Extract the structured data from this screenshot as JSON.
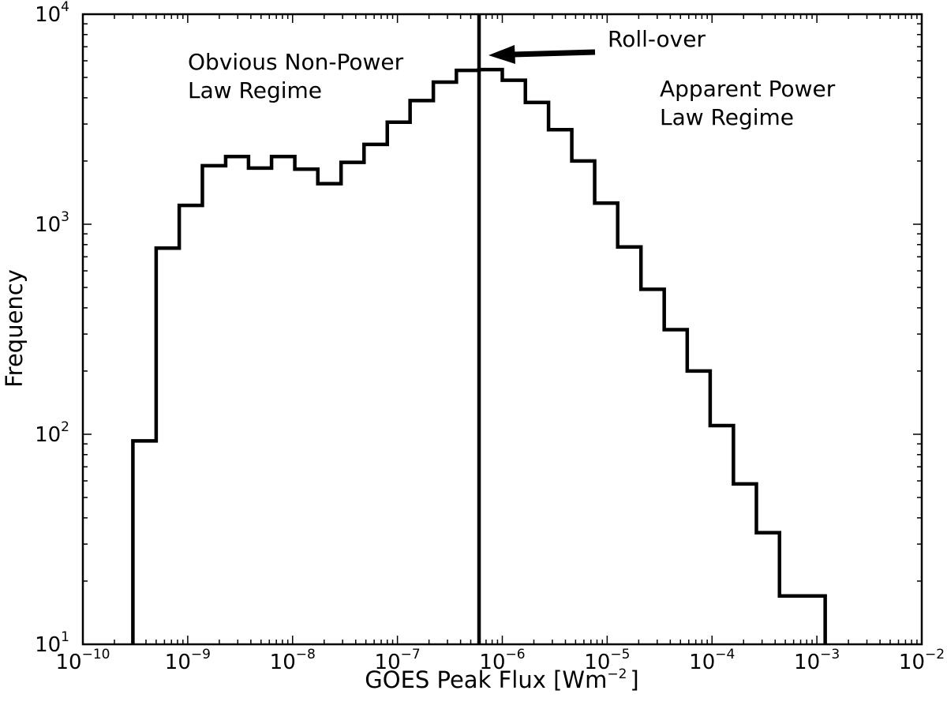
{
  "chart_data": {
    "type": "histogram",
    "xscale": "log",
    "yscale": "log",
    "xlim": [
      1e-10,
      0.01
    ],
    "ylim": [
      10,
      10000
    ],
    "xlabel": "GOES Peak Flux [Wm",
    "xlabel_sup": "−2",
    "xlabel_end": "]",
    "ylabel": "Frequency",
    "x_ticks": [
      {
        "base": "10",
        "exp": "−10"
      },
      {
        "base": "10",
        "exp": "−9"
      },
      {
        "base": "10",
        "exp": "−8"
      },
      {
        "base": "10",
        "exp": "−7"
      },
      {
        "base": "10",
        "exp": "−6"
      },
      {
        "base": "10",
        "exp": "−5"
      },
      {
        "base": "10",
        "exp": "−4"
      },
      {
        "base": "10",
        "exp": "−3"
      },
      {
        "base": "10",
        "exp": "−2"
      }
    ],
    "y_ticks": [
      {
        "base": "10",
        "exp": "1"
      },
      {
        "base": "10",
        "exp": "2"
      },
      {
        "base": "10",
        "exp": "3"
      },
      {
        "base": "10",
        "exp": "4"
      }
    ],
    "bin_edges": [
      3e-10,
      5e-10,
      8.3e-10,
      1.38e-09,
      2.3e-09,
      3.8e-09,
      6.3e-09,
      1.05e-08,
      1.74e-08,
      2.9e-08,
      4.8e-08,
      8e-08,
      1.32e-07,
      2.2e-07,
      3.65e-07,
      6e-07,
      1e-06,
      1.66e-06,
      2.76e-06,
      4.6e-06,
      7.6e-06,
      1.26e-05,
      2.1e-05,
      3.5e-05,
      5.8e-05,
      9.6e-05,
      0.00016,
      0.000265,
      0.00044,
      0.00073,
      0.0012
    ],
    "counts": [
      93,
      770,
      1230,
      1900,
      2100,
      1850,
      2100,
      1830,
      1560,
      1970,
      2400,
      3060,
      3880,
      4750,
      5400,
      5450,
      4850,
      3800,
      2820,
      2000,
      1260,
      780,
      490,
      315,
      200,
      110,
      58,
      34,
      17,
      17
    ],
    "vertical_line_x": 6e-07,
    "annotations": {
      "left_line1": "Obvious Non-Power",
      "left_line2": "Law Regime",
      "right_line1": "Apparent Power",
      "right_line2": "Law Regime",
      "arrow_label": "Roll-over"
    },
    "grid": false,
    "legend": "none"
  }
}
